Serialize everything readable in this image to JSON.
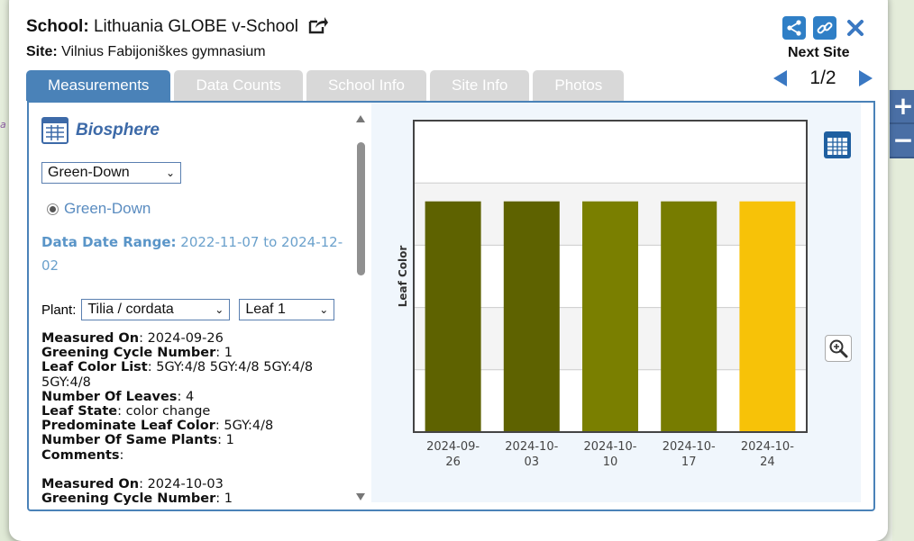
{
  "header": {
    "school_label": "School:",
    "school_name": "Lithuania GLOBE v-School",
    "site_label": "Site:",
    "site_name": "Vilnius Fabijoniškes gymnasium",
    "next_site_label": "Next Site",
    "pager": "1/2"
  },
  "tabs": [
    {
      "label": "Measurements",
      "active": true
    },
    {
      "label": "Data Counts",
      "active": false
    },
    {
      "label": "School Info",
      "active": false
    },
    {
      "label": "Site Info",
      "active": false
    },
    {
      "label": "Photos",
      "active": false
    }
  ],
  "left": {
    "section_title": "Biosphere",
    "protocol_select": "Green-Down",
    "radio_label": "Green-Down",
    "date_range_label": "Data Date Range:",
    "date_range_value": "2022-11-07 to 2024-12-02",
    "plant_label": "Plant:",
    "plant_select": "Tilia / cordata",
    "leaf_select": "Leaf 1",
    "measurement1": {
      "measured_on_label": "Measured On",
      "measured_on": "2024-09-26",
      "cycle_label": "Greening Cycle Number",
      "cycle": "1",
      "color_list_label": "Leaf Color List",
      "color_list": "5GY:4/8 5GY:4/8 5GY:4/8 5GY:4/8",
      "num_leaves_label": "Number Of Leaves",
      "num_leaves": "4",
      "leaf_state_label": "Leaf State",
      "leaf_state": "color change",
      "predominate_label": "Predominate Leaf Color",
      "predominate": "5GY:4/8",
      "same_plants_label": "Number Of Same Plants",
      "same_plants": "1",
      "comments_label": "Comments"
    },
    "measurement2": {
      "measured_on_label": "Measured On",
      "measured_on": "2024-10-03",
      "cycle_label": "Greening Cycle Number",
      "cycle": "1"
    }
  },
  "chart_data": {
    "type": "bar",
    "ylabel": "Leaf Color",
    "categories": [
      "2024-09-26",
      "2024-10-03",
      "2024-10-10",
      "2024-10-17",
      "2024-10-24"
    ],
    "values": [
      1,
      1,
      1,
      1,
      1
    ],
    "ylim": [
      0,
      1.35
    ],
    "bar_colors": [
      "#5e6200",
      "#5e6200",
      "#7a7f00",
      "#777c00",
      "#f7c208"
    ],
    "grid": true
  },
  "colors": {
    "accent": "#4a82b8",
    "tab_inactive": "#d8d8d8",
    "chart_bg": "#f0f6fc"
  }
}
